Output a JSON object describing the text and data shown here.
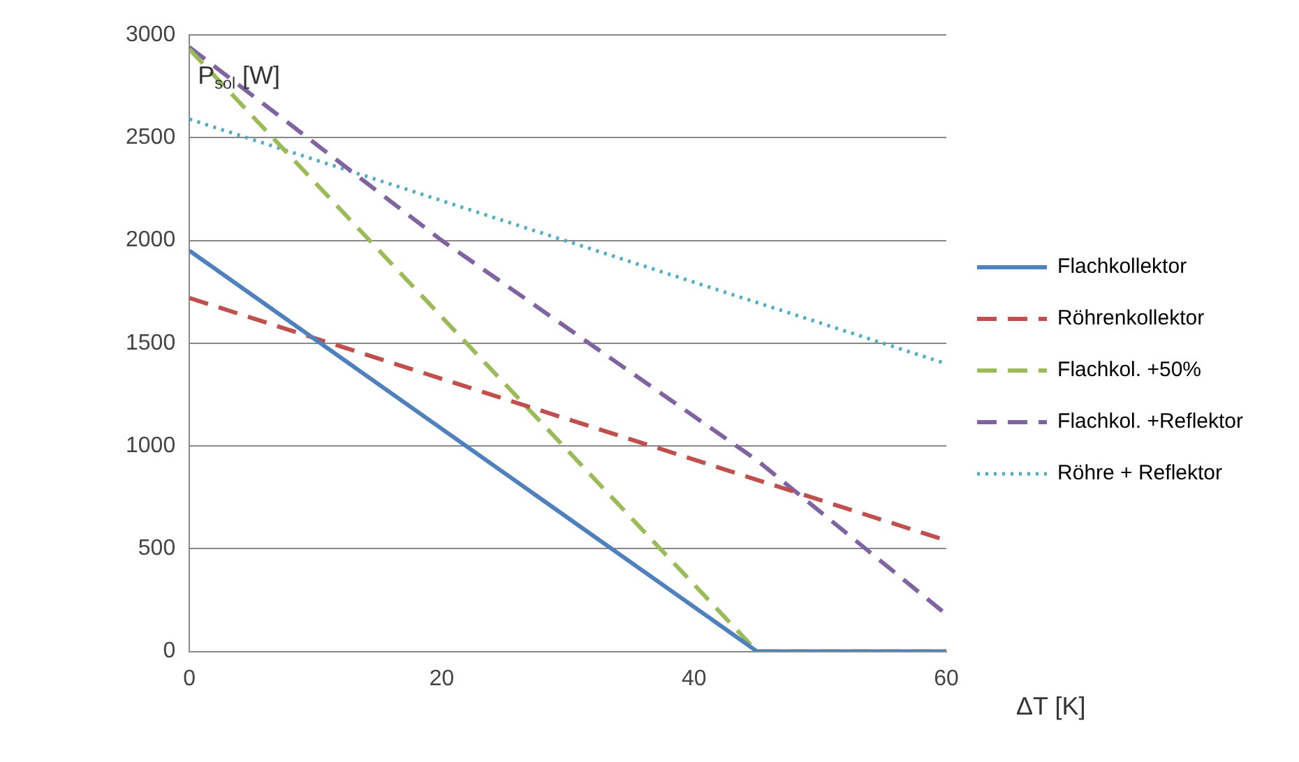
{
  "chart_data": {
    "type": "line",
    "xlabel": "ΔT [K]",
    "ylabel": "P$_{sol}$ [W]",
    "xlim": [
      0,
      60
    ],
    "xticks": [
      0,
      20,
      40,
      60
    ],
    "ylim": [
      0,
      3000
    ],
    "yticks": [
      0,
      500,
      1000,
      1500,
      2000,
      2500,
      3000
    ],
    "grid": "y",
    "legend": "right",
    "marker": "none",
    "series": [
      {
        "name": "Flachkollektor",
        "color": "#4f81bd",
        "line_style": "solid",
        "x": [
          0,
          45,
          60
        ],
        "values": [
          1950,
          0,
          0
        ]
      },
      {
        "name": "Röhrenkollektor",
        "color": "#c0504d",
        "line_style": "dashed",
        "x": [
          0,
          60
        ],
        "values": [
          1720,
          540
        ]
      },
      {
        "name": "Flachkol. +50%",
        "color": "#9bbb59",
        "line_style": "dashed",
        "x": [
          0,
          45,
          60
        ],
        "values": [
          2930,
          0,
          0
        ]
      },
      {
        "name": "Flachkol. +Reflektor",
        "color": "#8064a2",
        "line_style": "dashed",
        "x": [
          0,
          20,
          45,
          60
        ],
        "values": [
          2940,
          2000,
          930,
          180
        ]
      },
      {
        "name": "Röhre + Reflektor",
        "color": "#4bacc6",
        "line_style": "dotted",
        "x": [
          0,
          60
        ],
        "values": [
          2590,
          1400
        ]
      }
    ]
  }
}
